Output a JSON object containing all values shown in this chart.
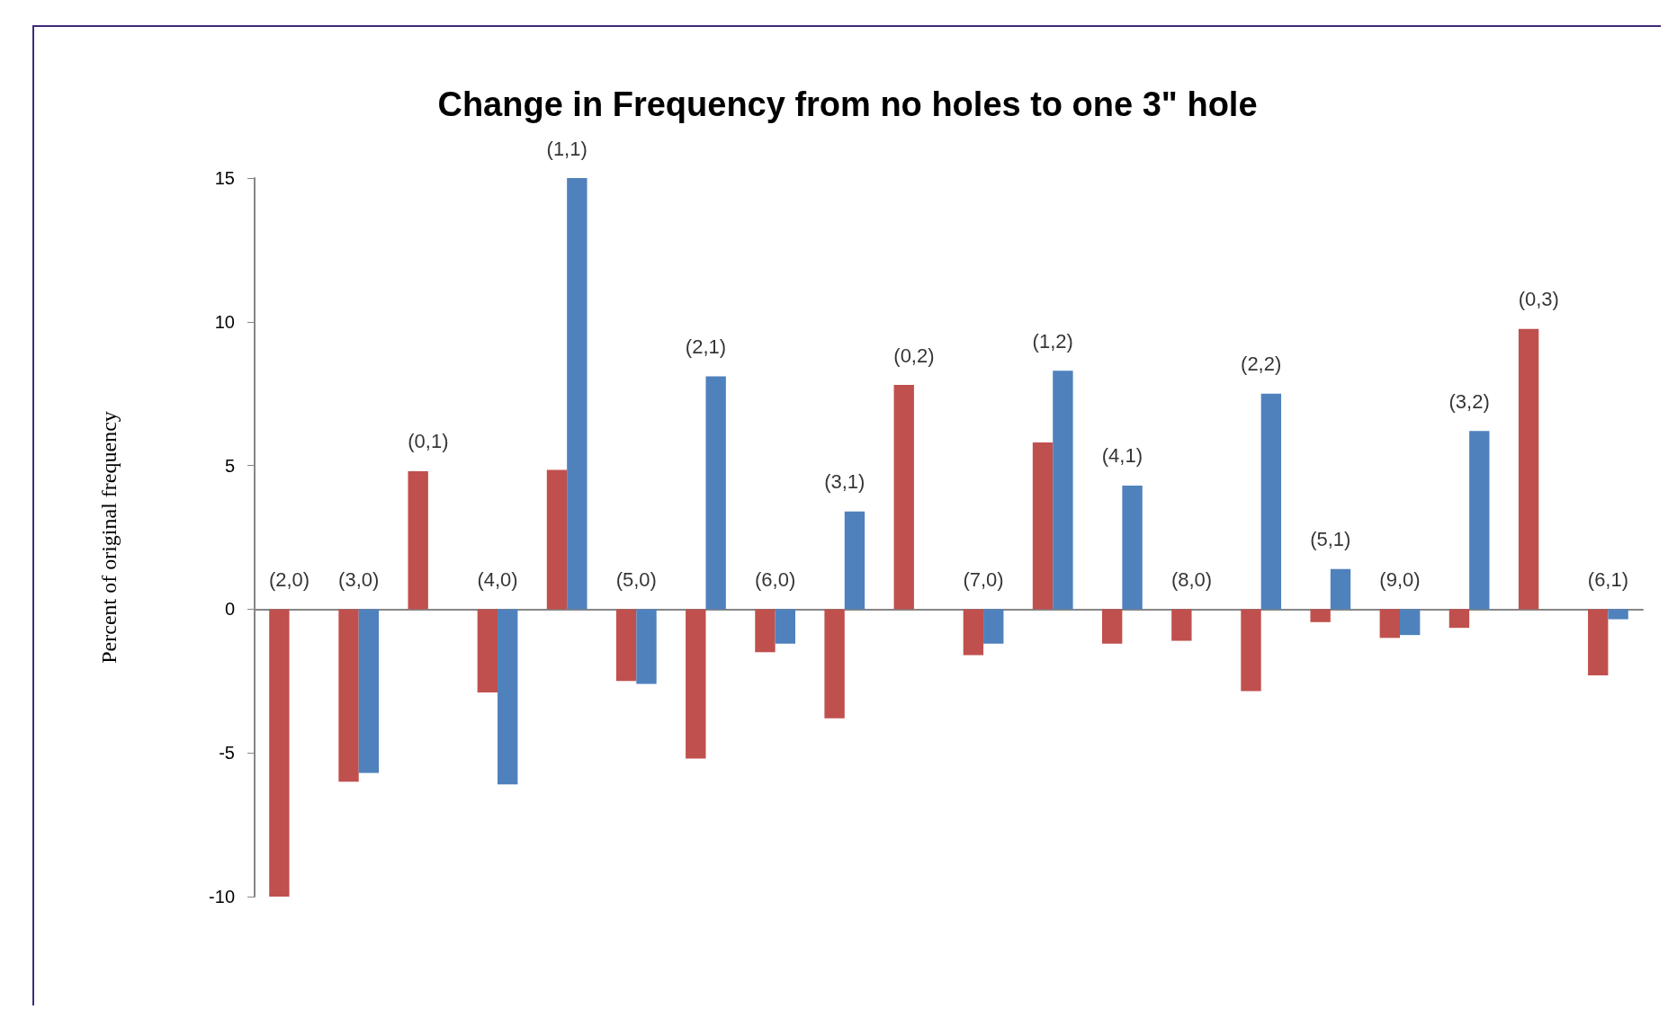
{
  "chart_data": {
    "type": "bar",
    "title": "Change in Frequency from no holes to one 3\" hole",
    "ylabel": "Percent of original frequency",
    "categories": [
      "(2,0)",
      "(3,0)",
      "(0,1)",
      "(4,0)",
      "(1,1)",
      "(5,0)",
      "(2,1)",
      "(6,0)",
      "(3,1)",
      "(0,2)",
      "(7,0)",
      "(1,2)",
      "(4,1)",
      "(8,0)",
      "(2,2)",
      "(5,1)",
      "(9,0)",
      "(3,2)",
      "(0,3)",
      "(6,1)"
    ],
    "series": [
      {
        "color": "#c0504d",
        "values": [
          -10,
          -6.0,
          4.8,
          -2.9,
          4.85,
          -2.5,
          -5.2,
          -1.5,
          -3.8,
          7.8,
          -1.6,
          5.8,
          -1.2,
          -1.1,
          -2.85,
          -0.45,
          -1.0,
          -0.65,
          9.75,
          -2.3
        ]
      },
      {
        "color": "#4f81bd",
        "values": [
          null,
          -5.7,
          null,
          -6.1,
          15,
          -2.6,
          8.1,
          -1.2,
          3.4,
          null,
          -1.2,
          8.3,
          4.3,
          null,
          7.5,
          1.4,
          -0.9,
          6.2,
          null,
          -0.35
        ]
      }
    ],
    "ylim": [
      -10,
      15
    ],
    "yticks": [
      -10,
      -5,
      0,
      5,
      10,
      15
    ],
    "grid": false
  }
}
